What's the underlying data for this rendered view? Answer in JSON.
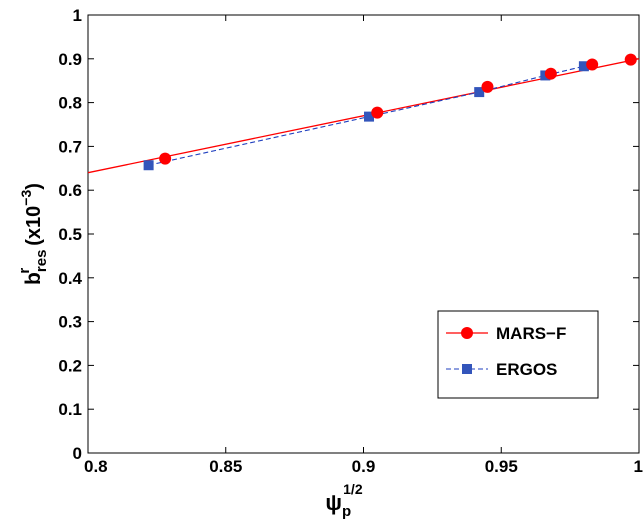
{
  "chart_data": {
    "type": "line",
    "xlabel": {
      "base": "ψ",
      "sub": "p",
      "sup": "1/2"
    },
    "ylabel": {
      "base": "b",
      "sup": "r",
      "sub": "res",
      "unit": "(x10",
      "unit_sup": "−3",
      "unit_close": ")"
    },
    "xlim": [
      0.8,
      1.0
    ],
    "ylim": [
      0,
      1
    ],
    "xticks": [
      "0.8",
      "0.85",
      "0.9",
      "0.95",
      "1"
    ],
    "yticks": [
      "0",
      "0.1",
      "0.2",
      "0.3",
      "0.4",
      "0.5",
      "0.6",
      "0.7",
      "0.8",
      "0.9",
      "1"
    ],
    "grid": false,
    "legend_position": "bottom-right",
    "series": [
      {
        "name": "MARS−F",
        "color": "#ff0000",
        "line_style": "solid",
        "marker": "circle",
        "line_x": [
          0.8,
          1.0
        ],
        "line_y": [
          0.64,
          0.9
        ],
        "x": [
          0.828,
          0.905,
          0.945,
          0.968,
          0.983,
          0.997
        ],
        "y": [
          0.672,
          0.777,
          0.836,
          0.866,
          0.887,
          0.898
        ]
      },
      {
        "name": "ERGOS",
        "color": "#1f3fbf",
        "marker_color": "#3355bb",
        "line_style": "dashed",
        "marker": "square",
        "x": [
          0.822,
          0.902,
          0.942,
          0.966,
          0.98
        ],
        "y": [
          0.657,
          0.768,
          0.824,
          0.862,
          0.883
        ]
      }
    ]
  }
}
